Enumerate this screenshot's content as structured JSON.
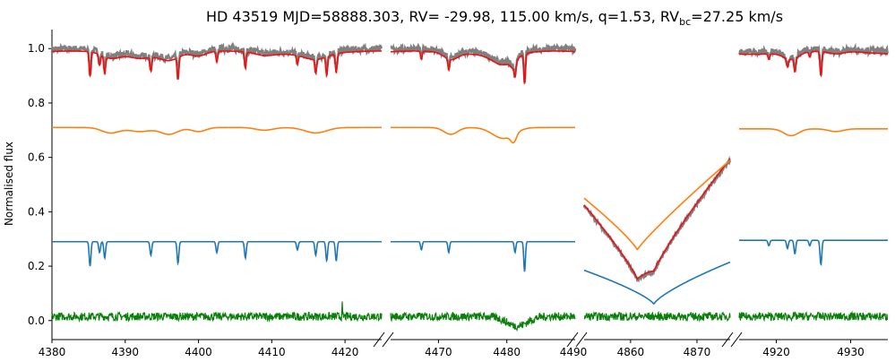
{
  "chart_data": {
    "type": "line",
    "title": "HD 43519 MJD=58888.303, RV= -29.98, 115.00 km/s, q=1.53, RV",
    "title_sub": "bc",
    "title_tail": "=27.25 km/s",
    "ylabel": "Normalised flux",
    "ylim": [
      -0.07,
      1.07
    ],
    "yticks": [
      "0.0",
      "0.2",
      "0.4",
      "0.6",
      "0.8",
      "1.0"
    ],
    "grid": false,
    "legend": "none",
    "colors": {
      "observed": "#808080",
      "model": "#ee1111",
      "primary": "#ff7f0e",
      "secondary": "#1f77b4",
      "residual": "#0a7f0a"
    },
    "panels": [
      {
        "xlim": [
          4380,
          4425
        ],
        "xticks": [
          "4380",
          "4390",
          "4400",
          "4410",
          "4420"
        ],
        "tick_values": [
          4380,
          4390,
          4400,
          4410,
          4420
        ],
        "secondary_lines": [
          [
            4385.2,
            0.09
          ],
          [
            4386.5,
            0.04
          ],
          [
            4387.2,
            0.06
          ],
          [
            4393.5,
            0.05
          ],
          [
            4397.2,
            0.08
          ],
          [
            4402.5,
            0.04
          ],
          [
            4406.4,
            0.06
          ],
          [
            4413.5,
            0.03
          ],
          [
            4416.0,
            0.05
          ],
          [
            4417.5,
            0.07
          ],
          [
            4418.8,
            0.07
          ]
        ],
        "primary_lines": [
          [
            4388.0,
            0.02,
            1.2
          ],
          [
            4392.0,
            0.015,
            1.5
          ],
          [
            4396.0,
            0.025,
            1.2
          ],
          [
            4400.0,
            0.015,
            1.0
          ],
          [
            4409.0,
            0.01,
            1.2
          ],
          [
            4416.0,
            0.02,
            1.5
          ]
        ],
        "offset_primary": 0.71,
        "offset_secondary": 0.29
      },
      {
        "xlim": [
          4463,
          4490
        ],
        "xticks": [
          "4470",
          "4480"
        ],
        "tick_values": [
          4470,
          4480
        ],
        "secondary_lines": [
          [
            4467.5,
            0.03
          ],
          [
            4471.5,
            0.04
          ],
          [
            4481.2,
            0.04
          ],
          [
            4482.6,
            0.11
          ]
        ],
        "primary_lines": [
          [
            4471.8,
            0.025,
            1.0
          ],
          [
            4479.5,
            0.04,
            1.6
          ],
          [
            4481.0,
            0.03,
            0.4
          ]
        ],
        "offset_primary": 0.71,
        "offset_secondary": 0.29
      },
      {
        "xlim": [
          4853,
          4875
        ],
        "xticks": [
          "4860",
          "4870"
        ],
        "tick_values": [
          4860,
          4870
        ],
        "hbeta": {
          "primary_center": 4861.0,
          "primary_min": 0.26,
          "secondary_center": 4863.5,
          "secondary_min": 0.06
        },
        "offset_primary": 0.59,
        "offset_secondary": 0.22
      },
      {
        "xlim": [
          4915,
          4935
        ],
        "xticks": [
          "4920",
          "4930"
        ],
        "tick_values": [
          4920,
          4930
        ],
        "secondary_lines": [
          [
            4919.0,
            0.02
          ],
          [
            4921.5,
            0.03
          ],
          [
            4922.5,
            0.05
          ],
          [
            4924.5,
            0.02
          ],
          [
            4926.0,
            0.09
          ]
        ],
        "primary_lines": [
          [
            4922.0,
            0.025,
            1.0
          ],
          [
            4928.0,
            0.01,
            1.0
          ]
        ],
        "offset_primary": 0.705,
        "offset_secondary": 0.295
      }
    ],
    "break_xlabels": [
      "4490"
    ]
  }
}
